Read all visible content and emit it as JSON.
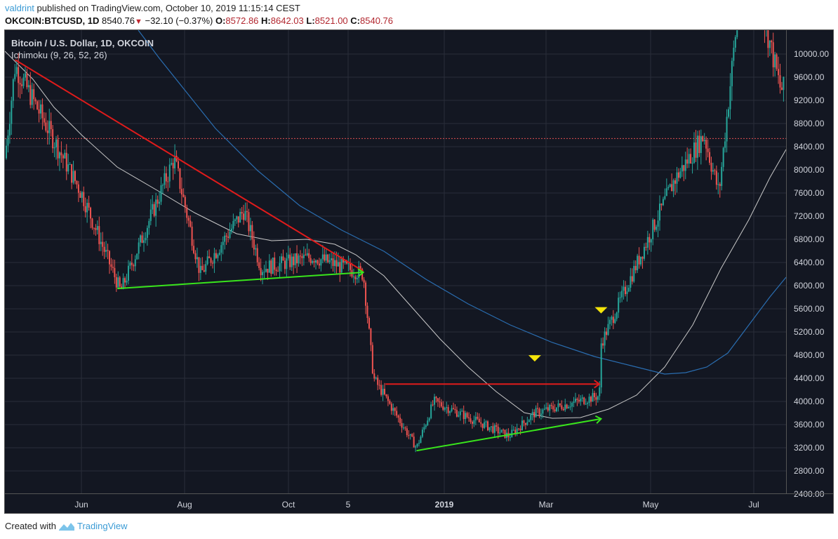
{
  "header": {
    "author": "valdrint",
    "published_text": " published on TradingView.com, October 10, 2019 11:15:14 CEST",
    "symbol": "OKCOIN:BTCUSD, 1D",
    "last_price": "8540.76",
    "change_icon": "triangle-down-icon",
    "change": "−32.10 (−0.37%)",
    "ohlc": {
      "o_label": "O:",
      "o": "8572.86",
      "h_label": "H:",
      "h": "8642.03",
      "l_label": "L:",
      "l": "8521.00",
      "c_label": "C:",
      "c": "8540.76"
    }
  },
  "legend": {
    "title": "Bitcoin / U.S. Dollar, 1D, OKCOIN",
    "indicator": "Ichimoku (9, 26, 52, 26)"
  },
  "footer": {
    "created_with": "Created with",
    "brand": "TradingView"
  },
  "colors": {
    "background": "#131722",
    "up_candle": "#26a69a",
    "down_candle": "#ef5350",
    "resistance_line": "#e01b1b",
    "support_line": "#39e51c",
    "marker": "#f5e50a",
    "ma_white": "#c8c8c8",
    "ma_blue": "#2a6db0",
    "current_price_line": "#e05050"
  },
  "chart_data": {
    "type": "candlestick",
    "title": "Bitcoin / U.S. Dollar, 1D, OKCOIN",
    "indicator": "Ichimoku (9, 26, 52, 26)",
    "x_tick_labels": [
      "Jun",
      "Aug",
      "Oct",
      "5",
      "2019",
      "Mar",
      "May",
      "Jul"
    ],
    "y_tick_labels": [
      "10000.00",
      "9600.00",
      "9200.00",
      "8800.00",
      "8400.00",
      "8000.00",
      "7600.00",
      "7200.00",
      "6800.00",
      "6400.00",
      "6000.00",
      "5600.00",
      "5200.00",
      "4800.00",
      "4400.00",
      "4000.00",
      "3600.00",
      "3200.00",
      "2800.00",
      "2400.00"
    ],
    "ylim": [
      2400,
      10400
    ],
    "current_price": 8540.76,
    "price_path_approx": [
      {
        "t": "2018-05",
        "close": 8200
      },
      {
        "t": "2018-05-05",
        "close": 9800
      },
      {
        "t": "2018-06",
        "close": 7600
      },
      {
        "t": "2018-06-24",
        "close": 5900
      },
      {
        "t": "2018-07-25",
        "close": 8200
      },
      {
        "t": "2018-08-10",
        "close": 6200
      },
      {
        "t": "2018-09-05",
        "close": 7300
      },
      {
        "t": "2018-09-15",
        "close": 6300
      },
      {
        "t": "2018-10-15",
        "close": 6500
      },
      {
        "t": "2018-11-14",
        "close": 6200
      },
      {
        "t": "2018-11-20",
        "close": 4400
      },
      {
        "t": "2018-12-15",
        "close": 3200
      },
      {
        "t": "2018-12-25",
        "close": 4000
      },
      {
        "t": "2019-02-08",
        "close": 3400
      },
      {
        "t": "2019-02-24",
        "close": 3800
      },
      {
        "t": "2019-04-01",
        "close": 4100
      },
      {
        "t": "2019-04-02",
        "close": 5000
      },
      {
        "t": "2019-05-14",
        "close": 7800
      },
      {
        "t": "2019-06-01",
        "close": 8600
      },
      {
        "t": "2019-06-10",
        "close": 7600
      },
      {
        "t": "2019-06-26",
        "close": 12000
      },
      {
        "t": "2019-07-16",
        "close": 9400
      }
    ],
    "annotations": [
      {
        "type": "trendline",
        "color": "red",
        "desc": "descending resistance",
        "from": {
          "t": "2018-05-05",
          "price": 9900
        },
        "to": {
          "t": "2018-11-14",
          "price": 6250
        }
      },
      {
        "type": "arrow",
        "color": "green",
        "desc": "ascending support",
        "from": {
          "t": "2018-06-22",
          "price": 5950
        },
        "to": {
          "t": "2018-11-14",
          "price": 6230
        }
      },
      {
        "type": "arrow",
        "color": "red",
        "desc": "horizontal resistance",
        "from": {
          "t": "2018-11-27",
          "price": 4300
        },
        "to": {
          "t": "2019-04-01",
          "price": 4300
        }
      },
      {
        "type": "arrow",
        "color": "green",
        "desc": "ascending support",
        "from": {
          "t": "2018-12-15",
          "price": 3150
        },
        "to": {
          "t": "2019-04-02",
          "price": 3700
        }
      },
      {
        "type": "marker",
        "shape": "triangle-down",
        "color": "yellow",
        "t": "2019-02-24",
        "price": 4750
      },
      {
        "type": "marker",
        "shape": "triangle-down",
        "color": "yellow",
        "t": "2019-04-02",
        "price": 5580
      },
      {
        "type": "hline",
        "style": "dotted",
        "color": "red",
        "price": 8540.76
      }
    ],
    "moving_averages": [
      {
        "name": "white MA",
        "color": "#c8c8c8"
      },
      {
        "name": "blue MA",
        "color": "#2a6db0"
      }
    ]
  }
}
